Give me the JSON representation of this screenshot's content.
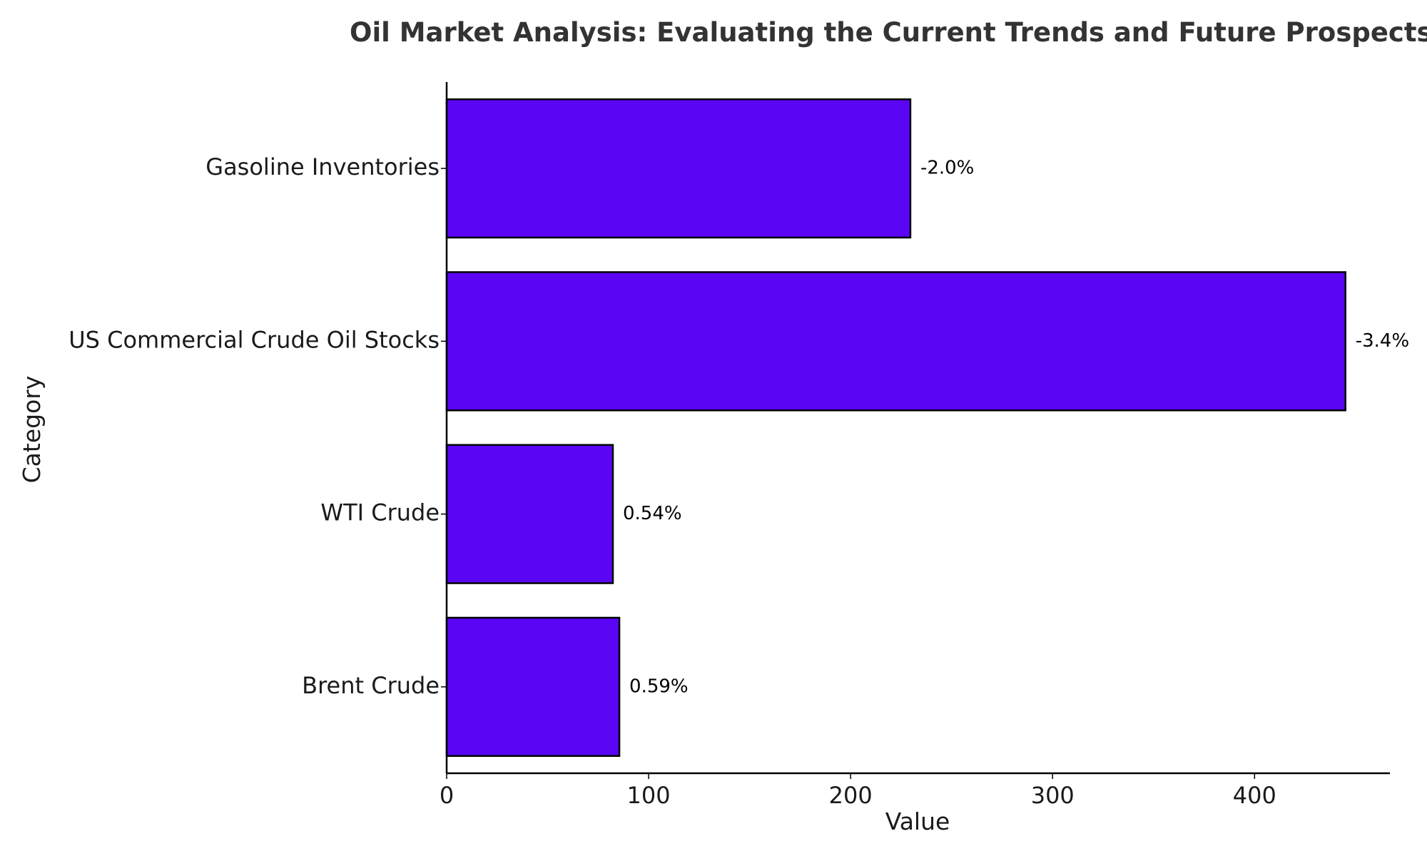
{
  "chart_data": {
    "type": "bar",
    "orientation": "horizontal",
    "title": "Oil Market Analysis: Evaluating the Current Trends and Future Prospects",
    "xlabel": "Value",
    "ylabel": "Category",
    "categories": [
      "Brent Crude",
      "WTI Crude",
      "US Commercial Crude Oil Stocks",
      "Gasoline Inventories"
    ],
    "values": [
      85.5,
      82.3,
      445.0,
      229.6
    ],
    "data_labels": [
      "0.59%",
      "0.54%",
      "-3.4%",
      "-2.0%"
    ],
    "xlim": [
      0,
      467
    ],
    "xticks": [
      0,
      100,
      200,
      300,
      400
    ],
    "grid": false,
    "legend": "none",
    "bar_color": "#5b05f5",
    "edge_color": "#000000"
  }
}
